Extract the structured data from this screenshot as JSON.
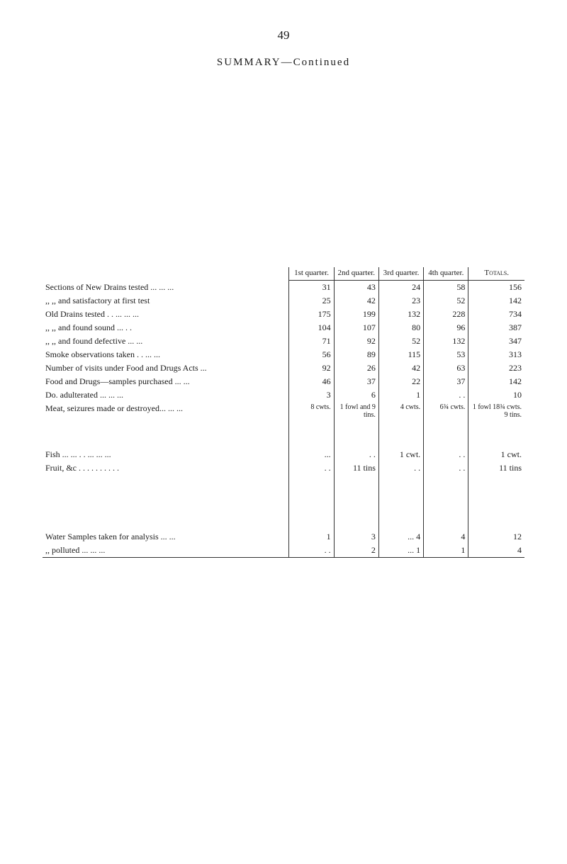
{
  "page_number": "49",
  "title_main": "SUMMARY",
  "title_sub": "—Continued",
  "headers": {
    "q1": "1st quarter.",
    "q2": "2nd quarter.",
    "q3": "3rd quarter.",
    "q4": "4th quarter.",
    "totals": "Totals."
  },
  "rows": [
    {
      "label": "Sections of New Drains tested   ...            ...        ...",
      "q1": "31",
      "q2": "43",
      "q3": "24",
      "q4": "58",
      "t": "156"
    },
    {
      "label": "      ,,             ,,        and satisfactory at first test",
      "q1": "25",
      "q2": "42",
      "q3": "23",
      "q4": "52",
      "t": "142"
    },
    {
      "label": "Old Drains tested          . .         ...          ...       ...",
      "q1": "175",
      "q2": "199",
      "q3": "132",
      "q4": "228",
      "t": "734"
    },
    {
      "label": "      ,,           ,,   and found sound           ...       . .",
      "q1": "104",
      "q2": "107",
      "q3": "80",
      "q4": "96",
      "t": "387"
    },
    {
      "label": "      ,,           ,,   and found defective       ...       ...",
      "q1": "71",
      "q2": "92",
      "q3": "52",
      "q4": "132",
      "t": "347"
    },
    {
      "label": "Smoke observations taken            . .           ...       ...",
      "q1": "56",
      "q2": "89",
      "q3": "115",
      "q4": "53",
      "t": "313"
    },
    {
      "label": "Number of visits under Food and Drugs Acts        ...",
      "q1": "92",
      "q2": "26",
      "q3": "42",
      "q4": "63",
      "t": "223"
    },
    {
      "label": "Food and Drugs—samples purchased          ...       ...",
      "q1": "46",
      "q2": "37",
      "q3": "22",
      "q4": "37",
      "t": "142"
    },
    {
      "label": "            Do.              adulterated       ...          ...       ...",
      "q1": "3",
      "q2": "6",
      "q3": "1",
      "q4": ". .",
      "t": "10"
    },
    {
      "label": "Meat, seizures made or destroyed...          ...       ...",
      "q1": "8 cwts.",
      "q2": "1 fowl and 9 tins.",
      "q3": "4 cwts.",
      "q4": "6¾ cwts.",
      "t": "1 fowl 18¾ cwts. 9 tins."
    }
  ],
  "fish_row": {
    "label": "Fish  ...          ...          . .          ...          ...       ...",
    "q1": "...",
    "q2": ". .",
    "q3": "1 cwt.",
    "q4": ". .",
    "t": "1 cwt."
  },
  "fruit_row": {
    "label": "Fruit, &c       . .          . .          . .          . .        . .",
    "q1": ". .",
    "q2": "11 tins",
    "q3": ". .",
    "q4": ". .",
    "t": "11 tins"
  },
  "water1": {
    "label": "Water Samples taken for analysis          ...       ...",
    "q1": "1",
    "q2": "3",
    "q3": "... 4",
    "q4": "4",
    "t": "12"
  },
  "water2": {
    "label": "      ,,              polluted            ...          ...       ...",
    "q1": ". .",
    "q2": "2",
    "q3": "... 1",
    "q4": "1",
    "t": "4"
  }
}
